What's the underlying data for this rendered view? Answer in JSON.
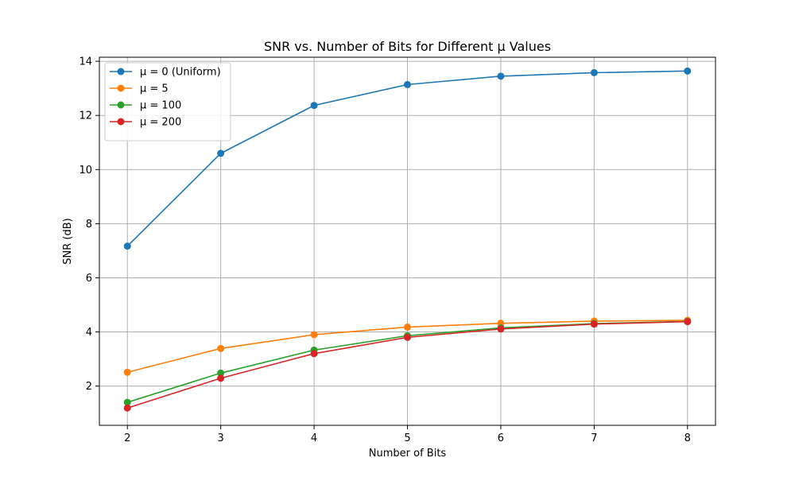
{
  "chart_data": {
    "type": "line",
    "title": "SNR vs. Number of Bits for Different μ Values",
    "xlabel": "Number of Bits",
    "ylabel": "SNR (dB)",
    "x": [
      2,
      3,
      4,
      5,
      6,
      7,
      8
    ],
    "xlim": [
      1.7,
      8.3
    ],
    "ylim": [
      0.55,
      14.15
    ],
    "xticks": [
      2,
      3,
      4,
      5,
      6,
      7,
      8
    ],
    "yticks": [
      2,
      4,
      6,
      8,
      10,
      12,
      14
    ],
    "grid": true,
    "legend_position": "top-left",
    "series": [
      {
        "name": "μ = 0 (Uniform)",
        "color": "#1f77b4",
        "values": [
          7.17,
          10.6,
          12.37,
          13.14,
          13.45,
          13.58,
          13.64
        ]
      },
      {
        "name": "μ = 5",
        "color": "#ff7f0e",
        "values": [
          2.51,
          3.39,
          3.9,
          4.18,
          4.32,
          4.4,
          4.43
        ]
      },
      {
        "name": "μ = 100",
        "color": "#2ca02c",
        "values": [
          1.4,
          2.48,
          3.33,
          3.86,
          4.15,
          4.31,
          4.39
        ]
      },
      {
        "name": "μ = 200",
        "color": "#d62728",
        "values": [
          1.19,
          2.29,
          3.2,
          3.8,
          4.11,
          4.29,
          4.38
        ]
      }
    ]
  }
}
